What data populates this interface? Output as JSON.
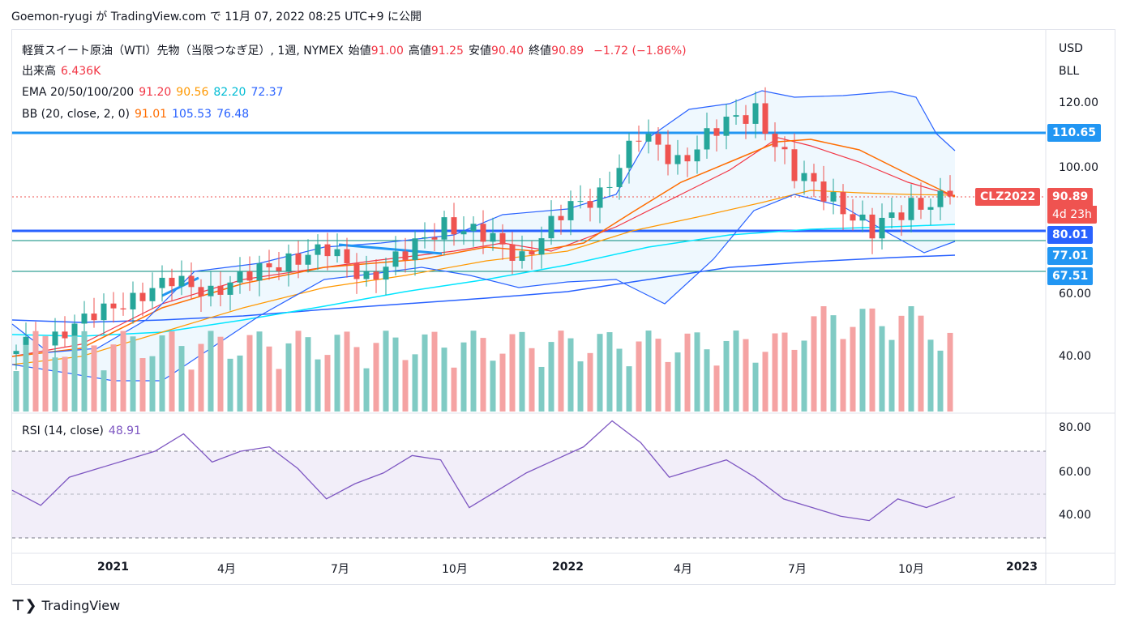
{
  "header": {
    "credit": "Goemon-ryugi が TradingView.com で 11月 07, 2022 08:25 UTC+9 に公開"
  },
  "legend": {
    "title": "軽質スイート原油（WTI）先物（当限つなぎ足）, 1週, NYMEX",
    "ohlc": [
      {
        "label": "始値",
        "value": "91.00"
      },
      {
        "label": "高値",
        "value": "91.25"
      },
      {
        "label": "安値",
        "value": "90.40"
      },
      {
        "label": "終値",
        "value": "90.89"
      }
    ],
    "change": "−1.72 (−1.86%)",
    "volume_label": "出来高",
    "volume_value": "6.436K",
    "ema_label": "EMA 20/50/100/200",
    "ema_values": [
      {
        "value": "91.20",
        "color": "#f23645"
      },
      {
        "value": "90.56",
        "color": "#ff9800"
      },
      {
        "value": "82.20",
        "color": "#00bcd4"
      },
      {
        "value": "72.37",
        "color": "#2962ff"
      }
    ],
    "bb_label": "BB (20, close, 2, 0)",
    "bb_values": [
      {
        "value": "91.01",
        "color": "#ff6d00"
      },
      {
        "value": "105.53",
        "color": "#2962ff"
      },
      {
        "value": "76.48",
        "color": "#2962ff"
      }
    ],
    "rsi_label": "RSI (14, close)",
    "rsi_value": "48.91"
  },
  "price_axis": {
    "currency": "USD",
    "unit": "BLL",
    "ticks": [
      "120.00",
      "100.00",
      "60.00",
      "40.00"
    ]
  },
  "tags": [
    {
      "label": "110.65",
      "color": "#2196f3"
    },
    {
      "label": "CLZ2022",
      "color": "#ef5350"
    },
    {
      "label": "90.89",
      "color": "#ef5350"
    },
    {
      "label": "4d 23h",
      "color": "#ef5350"
    },
    {
      "label": "80.01",
      "color": "#2962ff"
    },
    {
      "label": "77.01",
      "color": "#2196f3"
    },
    {
      "label": "67.51",
      "color": "#2196f3"
    }
  ],
  "rsi_axis": {
    "ticks": [
      "80.00",
      "60.00",
      "40.00"
    ]
  },
  "time_axis": [
    "2021",
    "4月",
    "7月",
    "10月",
    "2022",
    "4月",
    "7月",
    "10月",
    "2023"
  ],
  "footer": {
    "brand": "TradingView"
  },
  "chart_data": {
    "type": "candlestick",
    "title": "軽質スイート原油（WTI）先物（当限つなぎ足）, 1週, NYMEX",
    "last": {
      "open": 91.0,
      "high": 91.25,
      "low": 90.4,
      "close": 90.89
    },
    "horizontal_levels": [
      110.65,
      80.01,
      77.01,
      67.51
    ],
    "ohlc_trend": [
      {
        "d": "2020-11",
        "c": 42
      },
      {
        "d": "2020-12",
        "c": 48
      },
      {
        "d": "2021-01",
        "c": 52
      },
      {
        "d": "2021-02",
        "c": 60
      },
      {
        "d": "2021-03",
        "c": 63
      },
      {
        "d": "2021-04",
        "c": 62
      },
      {
        "d": "2021-05",
        "c": 65
      },
      {
        "d": "2021-06",
        "c": 72
      },
      {
        "d": "2021-07",
        "c": 73
      },
      {
        "d": "2021-08",
        "c": 66
      },
      {
        "d": "2021-09",
        "c": 72
      },
      {
        "d": "2021-10",
        "c": 83
      },
      {
        "d": "2021-11",
        "c": 78
      },
      {
        "d": "2021-12",
        "c": 72
      },
      {
        "d": "2022-01",
        "c": 85
      },
      {
        "d": "2022-02",
        "c": 92
      },
      {
        "d": "2022-03",
        "c": 110
      },
      {
        "d": "2022-04",
        "c": 102
      },
      {
        "d": "2022-05",
        "c": 112
      },
      {
        "d": "2022-06",
        "c": 118
      },
      {
        "d": "2022-07",
        "c": 98
      },
      {
        "d": "2022-08",
        "c": 90
      },
      {
        "d": "2022-09",
        "c": 80
      },
      {
        "d": "2022-10",
        "c": 88
      },
      {
        "d": "2022-11",
        "c": 90.89
      }
    ],
    "rsi": [
      52,
      45,
      58,
      62,
      66,
      70,
      78,
      65,
      70,
      72,
      62,
      48,
      55,
      60,
      68,
      66,
      44,
      52,
      60,
      66,
      72,
      84,
      74,
      58,
      62,
      66,
      58,
      48,
      44,
      40,
      38,
      48,
      44,
      49
    ]
  }
}
